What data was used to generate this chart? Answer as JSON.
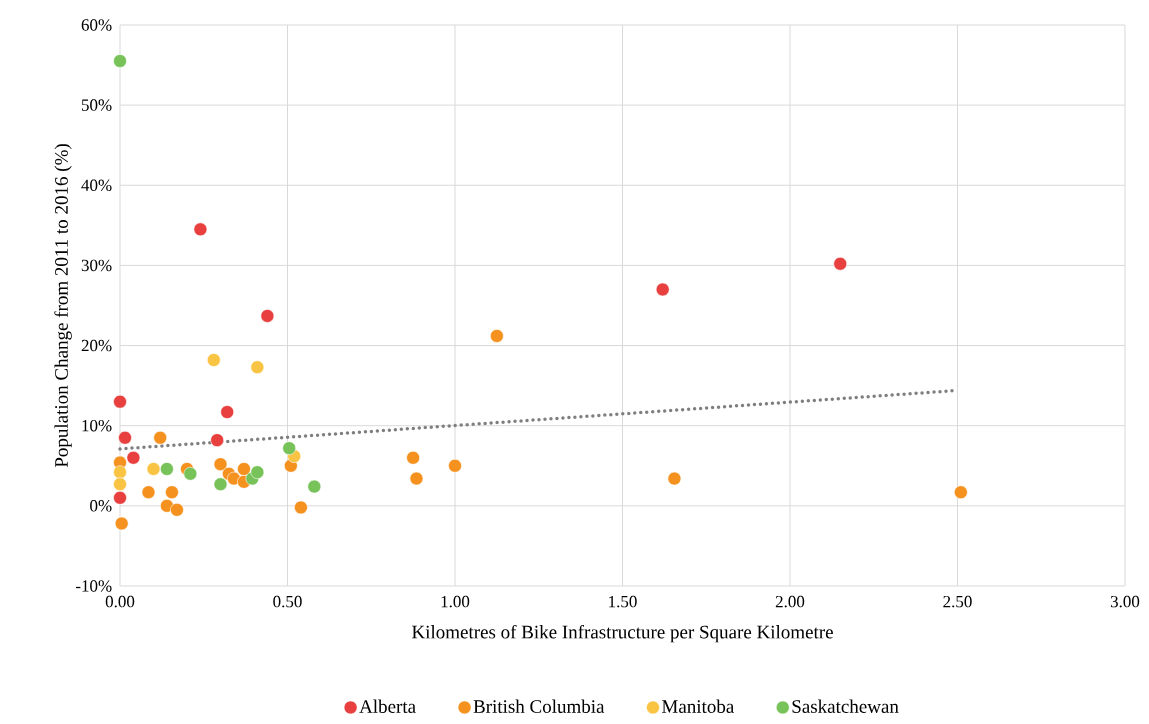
{
  "chart_data": {
    "type": "scatter",
    "xlabel": "Kilometres of Bike Infrastructure per Square Kilometre",
    "ylabel": "Population Change from 2011 to 2016 (%)",
    "xlim": [
      0,
      3
    ],
    "ylim": [
      -10,
      60
    ],
    "xticks": [
      {
        "value": 0,
        "label": "0.00"
      },
      {
        "value": 0.5,
        "label": "0.50"
      },
      {
        "value": 1,
        "label": "1.00"
      },
      {
        "value": 1.5,
        "label": "1.50"
      },
      {
        "value": 2,
        "label": "2.00"
      },
      {
        "value": 2.5,
        "label": "2.50"
      },
      {
        "value": 3,
        "label": "3.00"
      }
    ],
    "yticks": [
      {
        "value": -10,
        "label": "-10%"
      },
      {
        "value": 0,
        "label": "0%"
      },
      {
        "value": 10,
        "label": "10%"
      },
      {
        "value": 20,
        "label": "20%"
      },
      {
        "value": 30,
        "label": "30%"
      },
      {
        "value": 40,
        "label": "40%"
      },
      {
        "value": 50,
        "label": "50%"
      },
      {
        "value": 60,
        "label": "60%"
      }
    ],
    "grid": true,
    "legend": "bottom",
    "marker": "circle",
    "series": [
      {
        "name": "Alberta",
        "color": "#e8403f",
        "x": [
          0,
          0.015,
          0.04,
          0,
          0.24,
          0.44,
          0.32,
          0.29,
          1.62,
          2.15
        ],
        "values": [
          13,
          8.5,
          6,
          1,
          34.5,
          23.7,
          11.7,
          8.2,
          27,
          30.2
        ]
      },
      {
        "name": "British Columbia",
        "color": "#f5911e",
        "x": [
          0,
          0.005,
          0.12,
          0.085,
          0.14,
          0.155,
          0.17,
          0.2,
          0.3,
          0.325,
          0.34,
          0.37,
          0.37,
          0.51,
          0.54,
          0.875,
          0.885,
          1,
          1.125,
          1.655,
          2.51
        ],
        "values": [
          5.4,
          -2.2,
          8.5,
          1.7,
          0,
          1.7,
          -0.5,
          4.6,
          5.2,
          4,
          3.4,
          3,
          4.6,
          5,
          -0.2,
          6,
          3.4,
          5,
          21.2,
          3.4,
          1.7
        ]
      },
      {
        "name": "Manitoba",
        "color": "#f9c443",
        "x": [
          0,
          0,
          0.1,
          0.28,
          0.41,
          0.52
        ],
        "values": [
          4.2,
          2.7,
          4.6,
          18.2,
          17.3,
          6.2
        ]
      },
      {
        "name": "Saskatchewan",
        "color": "#78c25a",
        "x": [
          0,
          0.14,
          0.21,
          0.3,
          0.395,
          0.41,
          0.505,
          0.58
        ],
        "values": [
          55.5,
          4.6,
          4,
          2.7,
          3.4,
          4.2,
          7.2,
          2.4
        ]
      },
      {
        "type": "line",
        "line_style": "dotted",
        "marker": "none",
        "color": "#7f7f7f",
        "x": [
          0,
          2.5
        ],
        "values": [
          7.1,
          14.4
        ]
      }
    ]
  }
}
